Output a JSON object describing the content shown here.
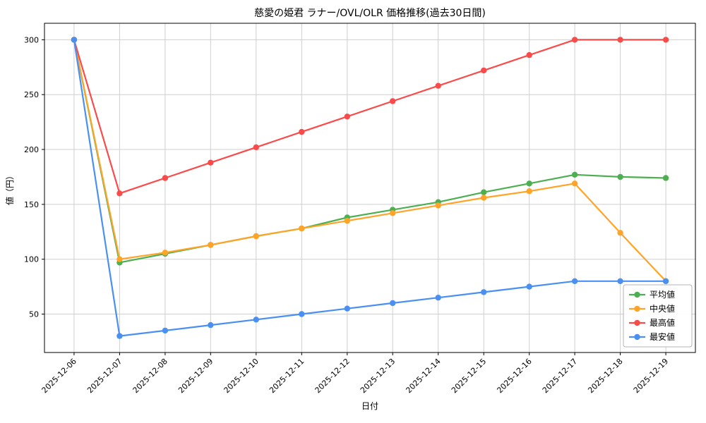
{
  "chart_data": {
    "type": "line",
    "title": "慈愛の姫君 ラナー/OVL/OLR 価格推移(過去30日間)",
    "xlabel": "日付",
    "ylabel": "値（円）",
    "categories": [
      "2025-12-06",
      "2025-12-07",
      "2025-12-08",
      "2025-12-09",
      "2025-12-10",
      "2025-12-11",
      "2025-12-12",
      "2025-12-13",
      "2025-12-14",
      "2025-12-15",
      "2025-12-16",
      "2025-12-17",
      "2025-12-18",
      "2025-12-19"
    ],
    "series": [
      {
        "key": "average",
        "name": "平均値",
        "color": "#4caf50",
        "values": [
          300,
          97,
          105,
          113,
          121,
          128,
          138,
          145,
          152,
          161,
          169,
          177,
          175,
          174
        ]
      },
      {
        "key": "median",
        "name": "中央値",
        "color": "#ffa426",
        "values": [
          300,
          100,
          106,
          113,
          121,
          128,
          135,
          142,
          149,
          156,
          162,
          169,
          124,
          80
        ]
      },
      {
        "key": "max",
        "name": "最高値",
        "color": "#fa4b4b",
        "values": [
          300,
          160,
          174,
          188,
          202,
          216,
          230,
          244,
          258,
          272,
          286,
          300,
          300,
          300
        ]
      },
      {
        "key": "min",
        "name": "最安値",
        "color": "#4a90f2",
        "values": [
          300,
          30,
          35,
          40,
          45,
          50,
          55,
          60,
          65,
          70,
          75,
          80,
          80,
          80
        ]
      }
    ],
    "ylim": [
      15,
      315
    ],
    "yticks": [
      50,
      100,
      150,
      200,
      250,
      300
    ],
    "grid": true,
    "legend_position": "lower right",
    "grid_color": "#cfcfcf",
    "spine_color": "#000000",
    "legend_edge_color": "#b5b5b5"
  }
}
